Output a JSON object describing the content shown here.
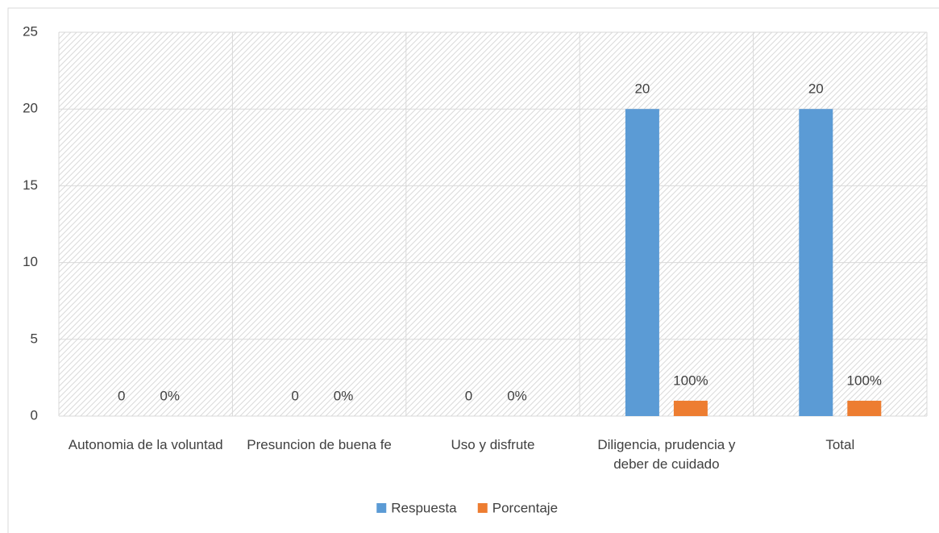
{
  "chart_data": {
    "type": "bar",
    "categories": [
      "Autonomia de la voluntad",
      "Presuncion de buena fe",
      "Uso y disfrute",
      "Diligencia, prudencia y deber de cuidado",
      "Total"
    ],
    "series": [
      {
        "name": "Respuesta",
        "color": "#5b9bd5",
        "values": [
          0,
          0,
          0,
          20,
          20
        ]
      },
      {
        "name": "Porcentaje",
        "color": "#ed7d31",
        "values": [
          0,
          0,
          0,
          1,
          1
        ],
        "value_labels": [
          "0%",
          "0%",
          "0%",
          "100%",
          "100%"
        ]
      }
    ],
    "ylim": [
      0,
      25
    ],
    "yticks": [
      0,
      5,
      10,
      15,
      20,
      25
    ],
    "grid": true,
    "legend": "bottom"
  }
}
